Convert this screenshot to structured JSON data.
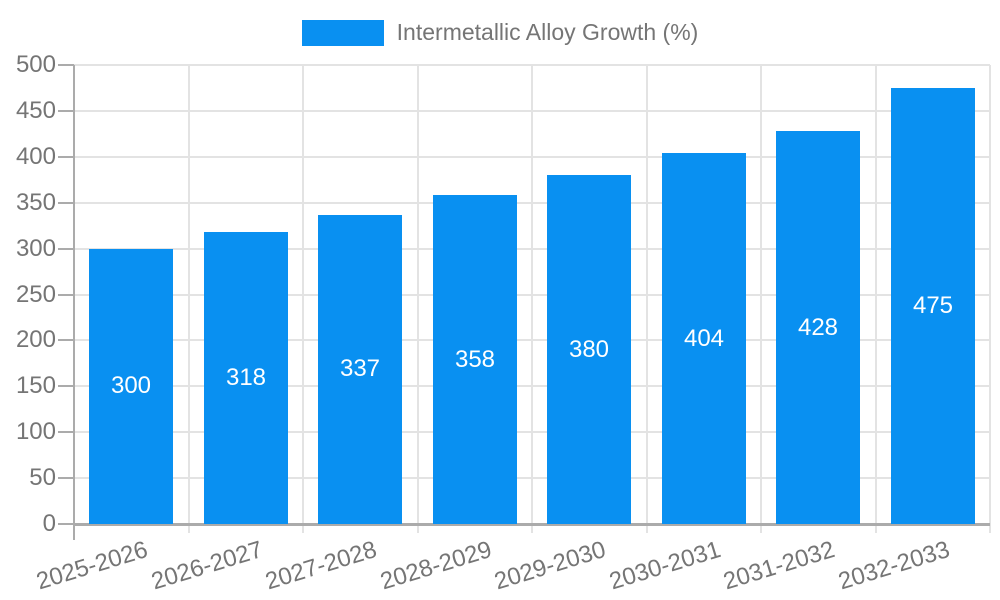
{
  "chart_data": {
    "type": "bar",
    "title": "",
    "legend": "Intermetallic Alloy Growth (%)",
    "legend_position": "top-center",
    "categories": [
      "2025-2026",
      "2026-2027",
      "2027-2028",
      "2028-2029",
      "2029-2030",
      "2030-2031",
      "2031-2032",
      "2032-2033"
    ],
    "series": [
      {
        "name": "Intermetallic Alloy Growth (%)",
        "values": [
          300,
          318,
          337,
          358,
          380,
          404,
          428,
          475
        ]
      }
    ],
    "value_labels": [
      "300",
      "318",
      "337",
      "358",
      "380",
      "404",
      "428",
      "475"
    ],
    "xlabel": "",
    "ylabel": "",
    "ylim": [
      0,
      500
    ],
    "yticks": [
      0,
      50,
      100,
      150,
      200,
      250,
      300,
      350,
      400,
      450,
      500
    ],
    "grid": true,
    "x_label_rotation_deg": -17,
    "colors": {
      "bar": "#0990f1",
      "value_label": "#ffffff",
      "axis_text": "#757575",
      "grid_line": "#e3e3e3",
      "axis_line": "#ababab",
      "background": "#ffffff"
    }
  }
}
